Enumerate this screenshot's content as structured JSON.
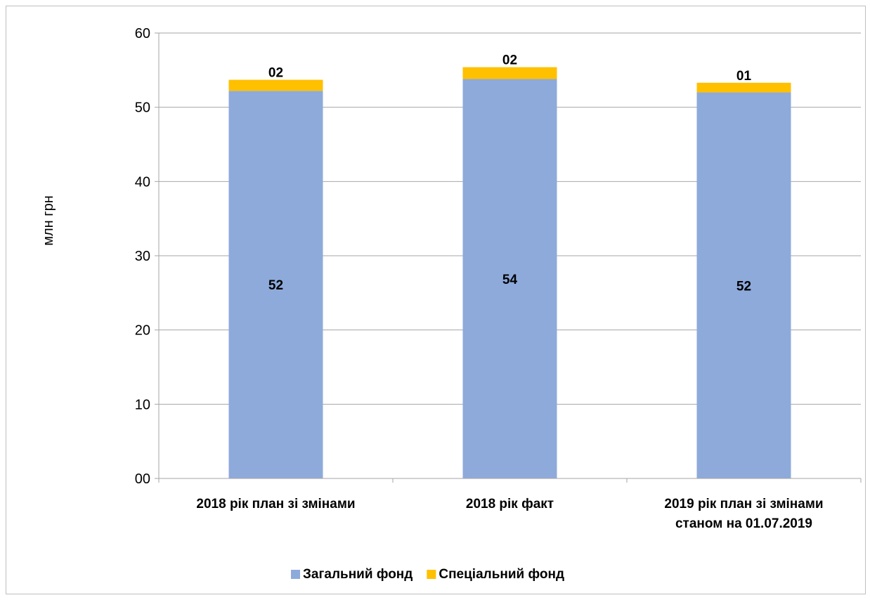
{
  "chart_data": {
    "type": "bar",
    "stacked": true,
    "categories": [
      [
        "2018 рік план зі змінами"
      ],
      [
        "2018 рік факт"
      ],
      [
        "2019 рік план зі змінами",
        "станом на 01.07.2019"
      ]
    ],
    "series": [
      {
        "name": "Загальний фонд",
        "color": "#8eaadb",
        "values": [
          52.2,
          53.8,
          52.0
        ],
        "labels": [
          "52",
          "54",
          "52"
        ]
      },
      {
        "name": "Спеціальний фонд",
        "color": "#ffc000",
        "values": [
          1.5,
          1.6,
          1.3
        ],
        "labels": [
          "02",
          "02",
          "01"
        ]
      }
    ],
    "ylabel": "млн грн",
    "ylim": [
      0,
      60
    ],
    "yticks": [
      0,
      10,
      20,
      30,
      40,
      50,
      60
    ],
    "ytick_labels": [
      "00",
      "10",
      "20",
      "30",
      "40",
      "50",
      "60"
    ],
    "grid": true,
    "legend_position": "bottom"
  }
}
